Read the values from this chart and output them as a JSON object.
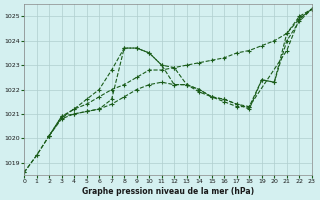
{
  "title": "Graphe pression niveau de la mer (hPa)",
  "bg_color": "#d4f0f0",
  "grid_color": "#b0cece",
  "line_color": "#1a5c1a",
  "xlim": [
    0,
    23
  ],
  "ylim": [
    1018.5,
    1025.5
  ],
  "xticks": [
    0,
    1,
    2,
    3,
    4,
    5,
    6,
    7,
    8,
    9,
    10,
    11,
    12,
    13,
    14,
    15,
    16,
    17,
    18,
    19,
    20,
    21,
    22,
    23
  ],
  "yticks": [
    1019,
    1020,
    1021,
    1022,
    1023,
    1024,
    1025
  ],
  "lines": [
    {
      "x": [
        0,
        1,
        2,
        3,
        4,
        5,
        6,
        7,
        8,
        9,
        10,
        11,
        12,
        13,
        14,
        15,
        16,
        17,
        18,
        21,
        22,
        23
      ],
      "y": [
        1018.6,
        1019.3,
        1020.1,
        1020.9,
        1021.2,
        1021.6,
        1022.0,
        1022.8,
        1023.7,
        1023.7,
        1023.5,
        1023.0,
        1022.2,
        1022.2,
        1022.0,
        1021.7,
        1021.5,
        1021.3,
        1021.3,
        1023.6,
        1024.9,
        1025.3
      ]
    },
    {
      "x": [
        2,
        3,
        4,
        5,
        6,
        7,
        8,
        9,
        10,
        11,
        12,
        13,
        14,
        15,
        16,
        17,
        18,
        19,
        20,
        21,
        22,
        23
      ],
      "y": [
        1020.1,
        1020.9,
        1021.0,
        1021.1,
        1021.2,
        1021.6,
        1023.7,
        1023.7,
        1023.5,
        1023.0,
        1022.9,
        1022.2,
        1021.9,
        1021.7,
        1021.6,
        1021.4,
        1021.3,
        1022.4,
        1022.3,
        1024.3,
        1025.0,
        1025.3
      ]
    },
    {
      "x": [
        0,
        1,
        2,
        3,
        4,
        5,
        6,
        7,
        8,
        9,
        10,
        11,
        12,
        13,
        14,
        15,
        16,
        17,
        18,
        19,
        20,
        21,
        22,
        23
      ],
      "y": [
        1018.6,
        1019.3,
        1020.1,
        1020.85,
        1021.2,
        1021.4,
        1021.7,
        1022.0,
        1022.2,
        1022.5,
        1022.8,
        1022.8,
        1022.9,
        1023.0,
        1023.1,
        1023.2,
        1023.3,
        1023.5,
        1023.6,
        1023.8,
        1024.0,
        1024.3,
        1024.9,
        1025.3
      ]
    },
    {
      "x": [
        2,
        3,
        4,
        5,
        6,
        7,
        8,
        9,
        10,
        11,
        12,
        13,
        14,
        15,
        16,
        17,
        18,
        19,
        20,
        21,
        22,
        23
      ],
      "y": [
        1020.1,
        1020.8,
        1021.0,
        1021.1,
        1021.2,
        1021.4,
        1021.7,
        1022.0,
        1022.2,
        1022.3,
        1022.2,
        1022.2,
        1022.0,
        1021.7,
        1021.6,
        1021.4,
        1021.2,
        1022.4,
        1022.3,
        1024.0,
        1024.8,
        1025.3
      ]
    }
  ]
}
